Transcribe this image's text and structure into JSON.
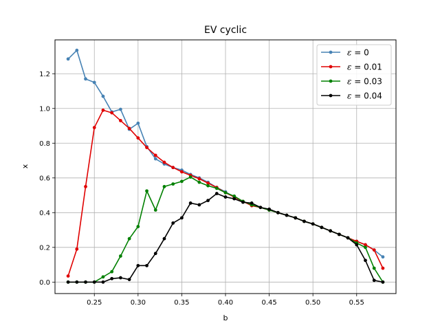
{
  "chart_data": {
    "type": "line",
    "title": "EV cyclic",
    "xlabel": "b",
    "ylabel": "x",
    "xlim": [
      0.205,
      0.595
    ],
    "ylim": [
      -0.066,
      1.395
    ],
    "xticks": [
      0.25,
      0.3,
      0.35,
      0.4,
      0.45,
      0.5,
      0.55
    ],
    "xtick_labels": [
      "0.25",
      "0.30",
      "0.35",
      "0.40",
      "0.45",
      "0.50",
      "0.55"
    ],
    "yticks": [
      0.0,
      0.2,
      0.4,
      0.6,
      0.8,
      1.0,
      1.2
    ],
    "ytick_labels": [
      "0.0",
      "0.2",
      "0.4",
      "0.6",
      "0.8",
      "1.0",
      "1.2"
    ],
    "grid": true,
    "legend_position": "top-right",
    "series": [
      {
        "name_prefix": "ε",
        "name_suffix": " = 0",
        "color": "#4682b4",
        "x": [
          0.22,
          0.23,
          0.24,
          0.25,
          0.26,
          0.27,
          0.28,
          0.29,
          0.3,
          0.31,
          0.32,
          0.33,
          0.34,
          0.35,
          0.36,
          0.37,
          0.38,
          0.39,
          0.4,
          0.41,
          0.42,
          0.43,
          0.44,
          0.45,
          0.46,
          0.47,
          0.48,
          0.49,
          0.5,
          0.51,
          0.52,
          0.53,
          0.54,
          0.55,
          0.56,
          0.57,
          0.58
        ],
        "y": [
          1.285,
          1.335,
          1.17,
          1.15,
          1.07,
          0.98,
          0.995,
          0.88,
          0.915,
          0.78,
          0.71,
          0.68,
          0.66,
          0.645,
          0.62,
          0.6,
          0.575,
          0.545,
          0.52,
          0.49,
          0.465,
          0.445,
          0.43,
          0.415,
          0.4,
          0.385,
          0.37,
          0.35,
          0.335,
          0.315,
          0.295,
          0.275,
          0.255,
          0.235,
          0.215,
          0.185,
          0.145
        ]
      },
      {
        "name_prefix": "ε",
        "name_suffix": " = 0.01",
        "color": "#e00000",
        "x": [
          0.22,
          0.23,
          0.24,
          0.25,
          0.26,
          0.27,
          0.28,
          0.29,
          0.3,
          0.31,
          0.32,
          0.33,
          0.34,
          0.35,
          0.36,
          0.37,
          0.38,
          0.39,
          0.4,
          0.41,
          0.42,
          0.43,
          0.44,
          0.45,
          0.46,
          0.47,
          0.48,
          0.49,
          0.5,
          0.51,
          0.52,
          0.53,
          0.54,
          0.55,
          0.56,
          0.57,
          0.58
        ],
        "y": [
          0.035,
          0.19,
          0.55,
          0.89,
          0.99,
          0.975,
          0.93,
          0.885,
          0.83,
          0.775,
          0.73,
          0.69,
          0.66,
          0.635,
          0.615,
          0.595,
          0.57,
          0.545,
          0.515,
          0.49,
          0.465,
          0.44,
          0.43,
          0.415,
          0.4,
          0.385,
          0.37,
          0.35,
          0.335,
          0.315,
          0.295,
          0.275,
          0.255,
          0.235,
          0.215,
          0.185,
          0.08
        ]
      },
      {
        "name_prefix": "ε",
        "name_suffix": " = 0.03",
        "color": "#008000",
        "x": [
          0.22,
          0.23,
          0.24,
          0.25,
          0.26,
          0.27,
          0.28,
          0.29,
          0.3,
          0.31,
          0.32,
          0.33,
          0.34,
          0.35,
          0.36,
          0.37,
          0.38,
          0.39,
          0.4,
          0.41,
          0.42,
          0.43,
          0.44,
          0.45,
          0.46,
          0.47,
          0.48,
          0.49,
          0.5,
          0.51,
          0.52,
          0.53,
          0.54,
          0.55,
          0.56,
          0.57,
          0.58
        ],
        "y": [
          0.0,
          0.0,
          0.0,
          0.0,
          0.03,
          0.06,
          0.15,
          0.25,
          0.32,
          0.525,
          0.415,
          0.55,
          0.565,
          0.58,
          0.605,
          0.575,
          0.555,
          0.54,
          0.515,
          0.495,
          0.465,
          0.445,
          0.43,
          0.415,
          0.4,
          0.385,
          0.37,
          0.35,
          0.335,
          0.315,
          0.295,
          0.275,
          0.255,
          0.225,
          0.2,
          0.08,
          0.0
        ]
      },
      {
        "name_prefix": "ε",
        "name_suffix": " = 0.04",
        "color": "#000000",
        "x": [
          0.22,
          0.23,
          0.24,
          0.25,
          0.26,
          0.27,
          0.28,
          0.29,
          0.3,
          0.31,
          0.32,
          0.33,
          0.34,
          0.35,
          0.36,
          0.37,
          0.38,
          0.39,
          0.4,
          0.41,
          0.42,
          0.43,
          0.44,
          0.45,
          0.46,
          0.47,
          0.48,
          0.49,
          0.5,
          0.51,
          0.52,
          0.53,
          0.54,
          0.55,
          0.56,
          0.57,
          0.58
        ],
        "y": [
          0.0,
          0.0,
          0.0,
          0.0,
          0.0,
          0.02,
          0.025,
          0.015,
          0.095,
          0.095,
          0.165,
          0.25,
          0.34,
          0.37,
          0.455,
          0.445,
          0.47,
          0.51,
          0.49,
          0.48,
          0.46,
          0.455,
          0.43,
          0.42,
          0.4,
          0.385,
          0.37,
          0.35,
          0.335,
          0.315,
          0.295,
          0.275,
          0.255,
          0.215,
          0.125,
          0.01,
          0.0
        ]
      }
    ]
  }
}
